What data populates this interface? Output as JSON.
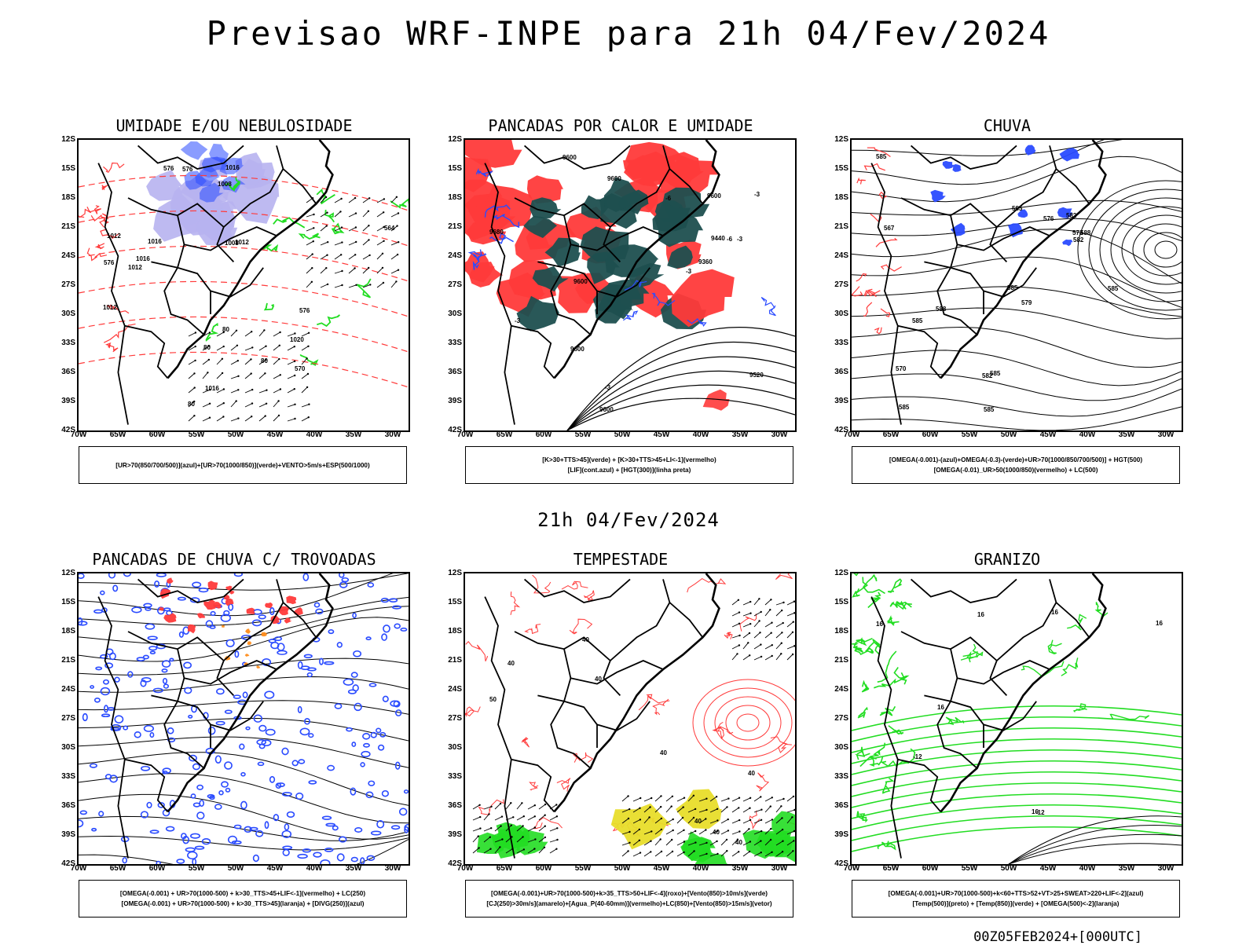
{
  "title": "Previsao WRF-INPE  para 21h 04/Fev/2024",
  "mid_title": "21h 04/Fev/2024",
  "footer": "00Z05FEB2024+[000UTC]",
  "lat_labels": [
    "12S",
    "15S",
    "18S",
    "21S",
    "24S",
    "27S",
    "30S",
    "33S",
    "36S",
    "39S",
    "42S"
  ],
  "lon_labels": [
    "70W",
    "65W",
    "60W",
    "55W",
    "50W",
    "45W",
    "40W",
    "35W",
    "30W"
  ],
  "colors": {
    "blue": "#2a4bff",
    "green": "#22dd22",
    "red": "#ff3a3a",
    "teal": "#1e4f4f",
    "lilac": "#b7b3ef",
    "yellow": "#e8dd2a",
    "orange": "#ff8c1a"
  },
  "panels": [
    {
      "title": "UMIDADE E/OU NEBULOSIDADE",
      "legend": [
        "[UR>70(850/700/500)](azul)+[UR>70(1000/850)](verde)+VENTO>5m/s+ESP(500/1000)"
      ],
      "contour_labels": [
        "1012",
        "1016",
        "1016",
        "1016",
        "1012",
        "1008",
        "1016",
        "1012",
        "1012",
        "1008",
        "1020",
        "576",
        "576",
        "570",
        "576",
        "576",
        "564",
        "80",
        "80",
        "80",
        "80"
      ]
    },
    {
      "title": "PANCADAS POR CALOR E UMIDADE",
      "legend": [
        "[K>30+TTS>45](verde) + [K>30+TTS>45+LI<-1](vermelho)",
        "[LIF](cont.azul) + [HGT(300)](linha preta)"
      ],
      "contour_labels": [
        "9680",
        "9600",
        "9600",
        "9600",
        "9600",
        "9600",
        "9520",
        "9440",
        "9360",
        "9600",
        "-3",
        "-3",
        "-3",
        "-3",
        "-6",
        "-6",
        "-3"
      ]
    },
    {
      "title": "CHUVA",
      "legend": [
        "[OMEGA(-0.001)-(azul)+OMEGA(-0.3)-(verde)+UR>70(1000/850/700/500)] + HGT(500)",
        "[OMEGA(-0.01)_UR>50(1000/850)(vermelho) + LC(500)"
      ],
      "contour_labels": [
        "585",
        "585",
        "588",
        "585",
        "585",
        "585",
        "588",
        "585",
        "585",
        "582",
        "579",
        "576",
        "573",
        "570",
        "567",
        "582",
        "585",
        "582"
      ]
    },
    {
      "title": "PANCADAS DE CHUVA C/ TROVOADAS",
      "legend": [
        "[OMEGA(-0.001) + UR>70(1000-500) + k>30_TTS>45+LIF<-1](vermelho) + LC(250)",
        "[OMEGA(-0.001) + UR>70(1000-500) + k>30_TTS>45](laranja) + [DIVG(250)](azul)"
      ],
      "contour_labels": []
    },
    {
      "title": "TEMPESTADE",
      "legend": [
        "[OMEGA(-0.001)+UR>70(1000-500)+k>35_TTS>50+LIF<-4](roxo)+[Vento(850)>10m/s](verde)",
        "[CJ(250)>30m/s](amarelo)+[Agua_P(40-60mm)](vermelho)+LC(850)+[Vento(850)>15m/s](vetor)"
      ],
      "contour_labels": [
        "50",
        "40",
        "40",
        "40",
        "40",
        "40",
        "40",
        "40",
        "40"
      ]
    },
    {
      "title": "GRANIZO",
      "legend": [
        "[OMEGA(-0.001)+UR>70(1000-500)+k<60+TTS>52+VT>25+SWEAT>220+LIF<-2](azul)",
        "[Temp(500)](preto) + [Temp(850)](verde) + [OMEGA(500)<-2](laranja)"
      ],
      "contour_labels": [
        "16",
        "16",
        "16",
        "16",
        "16",
        "16",
        "-12",
        "-12"
      ]
    }
  ]
}
